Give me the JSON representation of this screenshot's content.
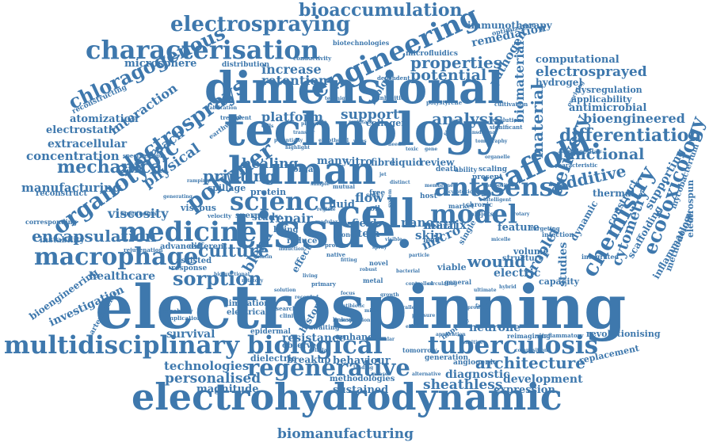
{
  "words": [
    {
      "key": "electrospinning",
      "text": "electrospinning"
    },
    {
      "key": "tissue",
      "text": "tissue."
    },
    {
      "key": "technology",
      "text": "technology"
    },
    {
      "key": "dimensional",
      "text": "dimensional"
    },
    {
      "key": "human",
      "text": "human"
    },
    {
      "key": "electrohydrodynamic",
      "text": "electrohydrodynamic"
    },
    {
      "key": "multidisciplinary",
      "text": "multidisciplinary"
    },
    {
      "key": "biological",
      "text": "biological"
    },
    {
      "key": "tuberculosis",
      "text": "tuberculosis"
    },
    {
      "key": "regenerative",
      "text": "regenerative"
    },
    {
      "key": "medicine",
      "text": "medicine"
    },
    {
      "key": "macrophage",
      "text": "macrophage"
    },
    {
      "key": "cell",
      "text": "cell"
    },
    {
      "key": "scaffold",
      "text": "scaffold."
    },
    {
      "key": "model",
      "text": "model"
    },
    {
      "key": "antisense",
      "text": "antisense"
    },
    {
      "key": "characterisation",
      "text": "characterisation"
    },
    {
      "key": "engineering",
      "text": "engineering"
    },
    {
      "key": "electrospraying",
      "text": "electrospraying"
    },
    {
      "key": "bioaccumulation",
      "text": "bioaccumulation"
    },
    {
      "key": "science",
      "text": "science"
    },
    {
      "key": "polymer",
      "text": "polymer"
    },
    {
      "key": "organotypic",
      "text": "organotypic"
    },
    {
      "key": "electrosprays",
      "text": "electrosprays"
    },
    {
      "key": "chloragogenous",
      "text": "chloragogenous"
    },
    {
      "key": "mechanical",
      "text": "mechanical"
    },
    {
      "key": "encapsulation",
      "text": "encapsulation"
    },
    {
      "key": "sorption",
      "text": "sorption"
    },
    {
      "key": "culture",
      "text": "culture"
    },
    {
      "key": "differentiation",
      "text": "differentiation"
    },
    {
      "key": "chemistry",
      "text": "chemistry"
    },
    {
      "key": "ecotoxicology",
      "text": "ecotoxicology"
    },
    {
      "key": "delivery",
      "text": "delivery"
    },
    {
      "key": "material",
      "text": "material"
    },
    {
      "key": "functional",
      "text": "functional"
    },
    {
      "key": "additive",
      "text": "additive"
    },
    {
      "key": "cytometry",
      "text": "cytometry"
    },
    {
      "key": "architecture",
      "text": "architecture"
    },
    {
      "key": "sheathless",
      "text": "sheathless"
    },
    {
      "key": "personalised",
      "text": "personalised"
    },
    {
      "key": "technologies",
      "text": "technologies"
    },
    {
      "key": "biomanufacturing",
      "text": "biomanufacturing"
    },
    {
      "key": "healthcare",
      "text": "healthcare"
    },
    {
      "key": "investigation",
      "text": "investigation"
    },
    {
      "key": "bioengineering",
      "text": "bioengineering"
    },
    {
      "key": "viscosity",
      "text": "viscosity"
    },
    {
      "key": "manufacturing",
      "text": "manufacturing"
    },
    {
      "key": "concentration",
      "text": "concentration"
    },
    {
      "key": "extracellular",
      "text": "extracellular"
    },
    {
      "key": "electrostatic",
      "text": "electrostatic"
    },
    {
      "key": "atomization",
      "text": "atomization"
    },
    {
      "key": "interaction",
      "text": "interaction"
    },
    {
      "key": "physical",
      "text": "physical"
    },
    {
      "key": "approach",
      "text": "approach"
    },
    {
      "key": "microsphere",
      "text": "microsphere"
    },
    {
      "key": "reconstructing",
      "text": "reconstructing"
    },
    {
      "key": "platform",
      "text": "platform"
    },
    {
      "key": "healing",
      "text": "healing"
    },
    {
      "key": "printing",
      "text": "printing"
    },
    {
      "key": "properties",
      "text": "properties"
    },
    {
      "key": "potential",
      "text": "potential"
    },
    {
      "key": "analysis",
      "text": "analysis"
    },
    {
      "key": "support",
      "text": "support"
    },
    {
      "key": "increase",
      "text": "increase"
    },
    {
      "key": "retention",
      "text": "retention"
    },
    {
      "key": "remediation",
      "text": "remediation"
    },
    {
      "key": "pathogen",
      "text": "pathogen"
    },
    {
      "key": "immunotherapy",
      "text": "immunotherapy"
    },
    {
      "key": "computational",
      "text": "computational"
    },
    {
      "key": "electrosprayed",
      "text": "electrosprayed"
    },
    {
      "key": "hydrogel",
      "text": "hydrogel"
    },
    {
      "key": "dysregulation",
      "text": "dysregulation"
    },
    {
      "key": "applicability",
      "text": "applicability"
    },
    {
      "key": "antimicrobial",
      "text": "antimicrobial"
    },
    {
      "key": "bioengineered",
      "text": "bioengineered"
    },
    {
      "key": "biomaterial",
      "text": "biomaterial"
    },
    {
      "key": "thermal",
      "text": "thermal"
    },
    {
      "key": "construct",
      "text": "construct"
    },
    {
      "key": "scaffolding",
      "text": "scaffolding"
    },
    {
      "key": "inflammation",
      "text": "inflammation"
    },
    {
      "key": "methodology",
      "text": "methodology"
    },
    {
      "key": "mycobacterium",
      "text": "mycobacterium"
    },
    {
      "key": "electrospun",
      "text": "electrospun"
    },
    {
      "key": "supporting",
      "text": "supporting"
    },
    {
      "key": "replacement",
      "text": "replacement"
    },
    {
      "key": "revolutionising",
      "text": "revolutionising"
    },
    {
      "key": "development",
      "text": "development"
    },
    {
      "key": "expression",
      "text": "expression"
    },
    {
      "key": "diagnostic",
      "text": "diagnostic"
    },
    {
      "key": "neurone",
      "text": "neurone"
    },
    {
      "key": "wound",
      "text": "wound"
    },
    {
      "key": "electric",
      "text": "electric"
    },
    {
      "key": "capacity",
      "text": "capacity"
    },
    {
      "key": "droplet",
      "text": "droplet"
    },
    {
      "key": "studies",
      "text": "studies"
    },
    {
      "key": "feature",
      "text": "feature"
    },
    {
      "key": "dynamic",
      "text": "dynamic"
    },
    {
      "key": "volume",
      "text": "volume"
    },
    {
      "key": "structure",
      "text": "structure"
    },
    {
      "key": "nano",
      "text": "nano"
    },
    {
      "key": "matrix",
      "text": "matrix"
    },
    {
      "key": "skin",
      "text": "skin"
    },
    {
      "key": "micro",
      "text": "micro"
    },
    {
      "key": "flow",
      "text": "flow"
    },
    {
      "key": "fluid",
      "text": "fluid"
    },
    {
      "key": "repair",
      "text": "repair"
    },
    {
      "key": "blend",
      "text": "blend"
    },
    {
      "key": "sperm",
      "text": "sperm"
    },
    {
      "key": "study",
      "text": "study"
    },
    {
      "key": "protein",
      "text": "protein"
    },
    {
      "key": "spillage",
      "text": "spillage"
    },
    {
      "key": "viscous",
      "text": "viscous"
    },
    {
      "key": "field",
      "text": "field"
    },
    {
      "key": "stem",
      "text": "stem"
    },
    {
      "key": "living",
      "text": "living"
    },
    {
      "key": "reduce",
      "text": "reduce"
    },
    {
      "key": "many",
      "text": "many"
    },
    {
      "key": "vitro",
      "text": "vitro"
    },
    {
      "key": "fibre",
      "text": "fibre"
    },
    {
      "key": "liquid",
      "text": "liquid"
    },
    {
      "key": "review",
      "text": "review"
    },
    {
      "key": "organ",
      "text": "organ"
    },
    {
      "key": "collagen",
      "text": "collagen"
    },
    {
      "key": "biology",
      "text": "biology"
    },
    {
      "key": "microfluidics",
      "text": "microfluidics"
    },
    {
      "key": "resistance",
      "text": "resistance"
    },
    {
      "key": "enhance",
      "text": "enhance"
    },
    {
      "key": "behaviour",
      "text": "behaviour"
    },
    {
      "key": "breakup",
      "text": "breakup"
    },
    {
      "key": "dielectric",
      "text": "dielectric"
    },
    {
      "key": "survival",
      "text": "survival"
    },
    {
      "key": "magnitude",
      "text": "magnitude"
    },
    {
      "key": "sustained",
      "text": "sustained"
    },
    {
      "key": "methodologies",
      "text": "methodologies"
    },
    {
      "key": "generation",
      "text": "generation"
    },
    {
      "key": "angiogenic",
      "text": "angiogenic"
    },
    {
      "key": "tomorrow",
      "text": "tomorrow"
    },
    {
      "key": "limitation",
      "text": "limitation"
    },
    {
      "key": "electrical",
      "text": "electrical"
    },
    {
      "key": "observed",
      "text": "observed"
    },
    {
      "key": "epidermal",
      "text": "epidermal"
    },
    {
      "key": "history",
      "text": "history"
    },
    {
      "key": "advanced",
      "text": "advanced"
    },
    {
      "key": "different",
      "text": "different"
    },
    {
      "key": "assisted",
      "text": "assisted"
    },
    {
      "key": "response",
      "text": "response"
    },
    {
      "key": "instability",
      "text": "instability"
    },
    {
      "key": "reconstruct",
      "text": "reconstruct"
    },
    {
      "key": "corresponding",
      "text": "corresponding"
    },
    {
      "key": "arteriogenic",
      "text": "arteriogenic"
    },
    {
      "key": "effect",
      "text": "effect"
    },
    {
      "key": "death",
      "text": "death"
    },
    {
      "key": "ability",
      "text": "ability"
    },
    {
      "key": "present",
      "text": "present"
    },
    {
      "key": "scaling",
      "text": "scaling"
    },
    {
      "key": "host",
      "text": "host"
    },
    {
      "key": "market",
      "text": "market"
    },
    {
      "key": "chronic",
      "text": "chronic"
    },
    {
      "key": "biojets",
      "text": "biojets"
    },
    {
      "key": "lead",
      "text": "lead"
    },
    {
      "key": "viable",
      "text": "viable"
    },
    {
      "key": "general",
      "text": "general"
    },
    {
      "key": "neural",
      "text": "neural"
    },
    {
      "key": "infection",
      "text": "infection"
    },
    {
      "key": "integrated",
      "text": "integrated"
    },
    {
      "key": "single",
      "text": "single"
    },
    {
      "key": "improve",
      "text": "improve"
    },
    {
      "key": "reimagining",
      "text": "reimagining"
    },
    {
      "key": "inflammatory",
      "text": "inflammatory"
    },
    {
      "key": "biotechnologies",
      "text": "biotechnologies"
    },
    {
      "key": "distribution",
      "text": "distribution"
    },
    {
      "key": "treatment",
      "text": "treatment"
    },
    {
      "key": "optimization",
      "text": "optimization"
    },
    {
      "key": "earthworm",
      "text": "earthworm"
    },
    {
      "key": "longitudinal",
      "text": "longitudinal"
    },
    {
      "key": "rejuvenation",
      "text": "rejuvenation"
    },
    {
      "key": "significant",
      "text": "significant"
    },
    {
      "key": "resolution",
      "text": "resolution"
    },
    {
      "key": "molecular",
      "text": "molecular"
    },
    {
      "key": "velocity",
      "text": "velocity"
    },
    {
      "key": "mutual",
      "text": "mutual"
    },
    {
      "key": "free",
      "text": "free"
    },
    {
      "key": "self",
      "text": "self"
    },
    {
      "key": "soil",
      "text": "soil"
    },
    {
      "key": "cone",
      "text": "cone"
    },
    {
      "key": "process",
      "text": "process"
    },
    {
      "key": "native",
      "text": "native"
    },
    {
      "key": "novel",
      "text": "novel"
    },
    {
      "key": "metal",
      "text": "metal"
    },
    {
      "key": "primary",
      "text": "primary"
    },
    {
      "key": "awaiting",
      "text": "awaiting"
    },
    {
      "key": "capability",
      "text": "capability"
    },
    {
      "key": "implication",
      "text": "implication"
    },
    {
      "key": "research",
      "text": "research"
    },
    {
      "key": "clinical",
      "text": "clinical"
    },
    {
      "key": "linked",
      "text": "linked"
    },
    {
      "key": "spectroscopic",
      "text": "spectroscopic"
    },
    {
      "key": "conductivity",
      "text": "conductivity"
    },
    {
      "key": "dependent",
      "text": "dependent"
    },
    {
      "key": "inhibition",
      "text": "inhibition"
    },
    {
      "key": "polystyrene",
      "text": "polystyrene"
    },
    {
      "key": "cultivation",
      "text": "cultivation"
    },
    {
      "key": "characteristic",
      "text": "characteristic"
    },
    {
      "key": "targeting",
      "text": "targeting"
    },
    {
      "key": "fabrication",
      "text": "fabrication"
    },
    {
      "key": "tomography",
      "text": "tomography"
    },
    {
      "key": "generating",
      "text": "generating"
    },
    {
      "key": "ramping",
      "text": "ramping"
    },
    {
      "key": "intelligent",
      "text": "intelligent"
    },
    {
      "key": "application",
      "text": "application"
    },
    {
      "key": "recorded",
      "text": "recorded"
    },
    {
      "key": "rotatory",
      "text": "rotatory"
    },
    {
      "key": "transfer",
      "text": "transfer"
    },
    {
      "key": "potentially",
      "text": "potentially"
    },
    {
      "key": "endothelial",
      "text": "endothelial"
    },
    {
      "key": "technique",
      "text": "technique"
    },
    {
      "key": "maintain",
      "text": "maintain"
    },
    {
      "key": "fibrous",
      "text": "fibrous"
    },
    {
      "key": "transdermal",
      "text": "transdermal"
    },
    {
      "key": "overlying",
      "text": "overlying"
    },
    {
      "key": "cells",
      "text": "cells"
    },
    {
      "key": "promote",
      "text": "promote"
    },
    {
      "key": "alternative",
      "text": "alternative"
    },
    {
      "key": "cellular",
      "text": "cellular"
    },
    {
      "key": "sensitive",
      "text": "sensitive"
    },
    {
      "key": "composition",
      "text": "composition"
    },
    {
      "key": "biofunctional",
      "text": "biofunctional"
    },
    {
      "key": "circulating",
      "text": "circulating"
    },
    {
      "key": "growth",
      "text": "growth"
    },
    {
      "key": "parallel",
      "text": "parallel"
    },
    {
      "key": "focus",
      "text": "focus"
    },
    {
      "key": "solution",
      "text": "solution"
    },
    {
      "key": "mixed",
      "text": "mixed"
    },
    {
      "key": "pressure",
      "text": "pressure"
    },
    {
      "key": "system",
      "text": "system"
    },
    {
      "key": "highlight",
      "text": "highlight"
    },
    {
      "key": "antibiotic",
      "text": "antibiotic"
    },
    {
      "key": "visible",
      "text": "visible"
    },
    {
      "key": "particle",
      "text": "particle"
    },
    {
      "key": "ultimate",
      "text": "ultimate"
    },
    {
      "key": "spray",
      "text": "spray"
    },
    {
      "key": "robust",
      "text": "robust"
    },
    {
      "key": "living2",
      "text": "living"
    },
    {
      "key": "hybrid",
      "text": "hybrid"
    },
    {
      "key": "fabric",
      "text": "fabric"
    },
    {
      "key": "micelle",
      "text": "micelle"
    },
    {
      "key": "rotary",
      "text": "rotary"
    },
    {
      "key": "platform2",
      "text": "platforms"
    },
    {
      "key": "sample",
      "text": "sample"
    },
    {
      "key": "jet",
      "text": "jet"
    },
    {
      "key": "composite",
      "text": "composite"
    },
    {
      "key": "membrane",
      "text": "membrane"
    },
    {
      "key": "distinct",
      "text": "distinct"
    },
    {
      "key": "cytotoxic",
      "text": "cytotoxic"
    },
    {
      "key": "regime",
      "text": "regime"
    },
    {
      "key": "modular",
      "text": "modular"
    },
    {
      "key": "fitting",
      "text": "fitting"
    },
    {
      "key": "induction",
      "text": "induction"
    },
    {
      "key": "bacterial",
      "text": "bacterial"
    },
    {
      "key": "controlled",
      "text": "controlled"
    },
    {
      "key": "vascular",
      "text": "vascular"
    },
    {
      "key": "gelatin",
      "text": "gelatin"
    },
    {
      "key": "organelle",
      "text": "organelle"
    },
    {
      "key": "loading",
      "text": "loading"
    },
    {
      "key": "phase",
      "text": "phase"
    },
    {
      "key": "bio",
      "text": "bio"
    },
    {
      "key": "virus",
      "text": "virus"
    },
    {
      "key": "needle",
      "text": "needle"
    },
    {
      "key": "toxic",
      "text": "toxic"
    },
    {
      "key": "gene",
      "text": "gene"
    },
    {
      "key": "exhibit",
      "text": "exhibit"
    },
    {
      "key": "suspension",
      "text": "suspension"
    }
  ]
}
